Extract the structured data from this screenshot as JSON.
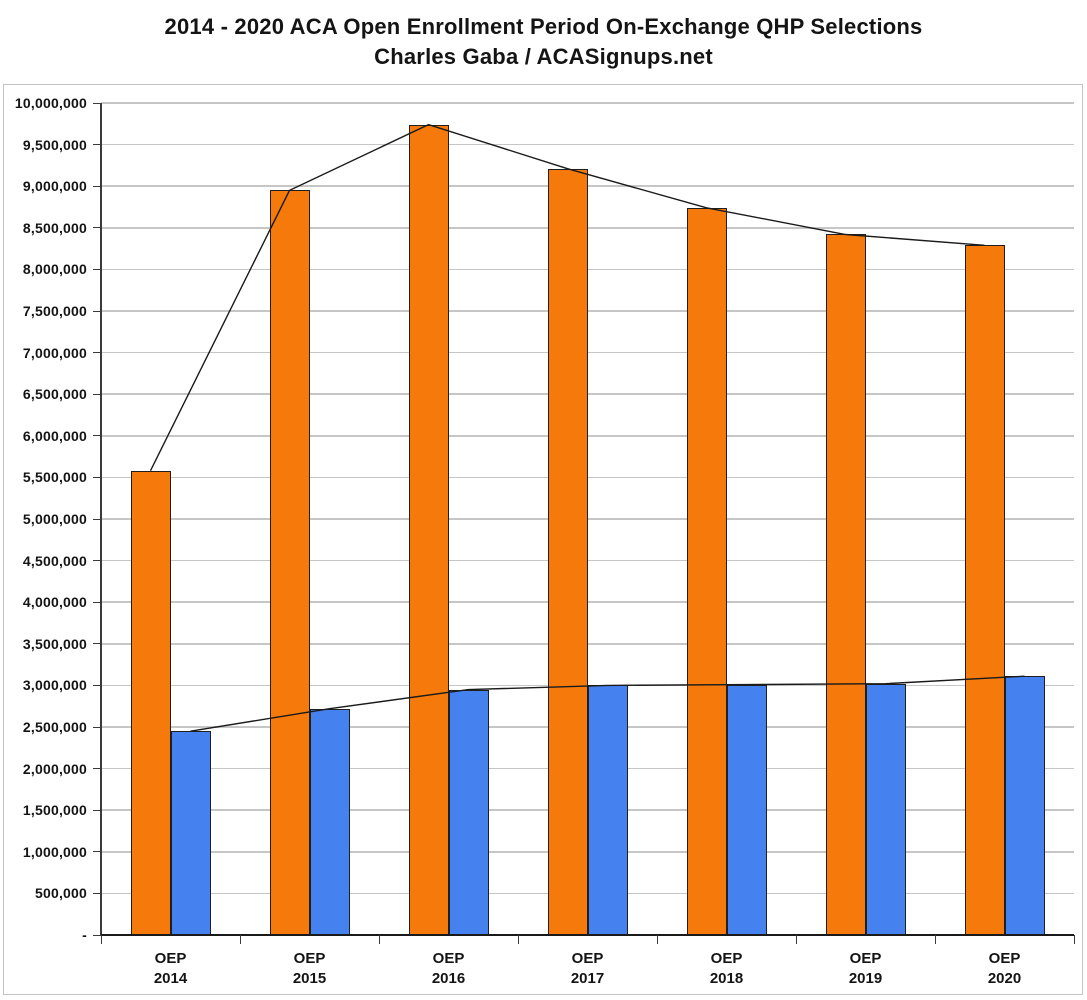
{
  "title": {
    "line1": "2014 - 2020 ACA Open Enrollment Period On-Exchange QHP Selections",
    "line2": "Charles Gaba / ACASignups.net"
  },
  "chart_data": {
    "type": "bar",
    "title": "2014 - 2020 ACA Open Enrollment Period On-Exchange QHP Selections",
    "subtitle": "Charles Gaba / ACASignups.net",
    "categories": [
      {
        "top": "OEP",
        "bottom": "2014"
      },
      {
        "top": "OEP",
        "bottom": "2015"
      },
      {
        "top": "OEP",
        "bottom": "2016"
      },
      {
        "top": "OEP",
        "bottom": "2017"
      },
      {
        "top": "OEP",
        "bottom": "2018"
      },
      {
        "top": "OEP",
        "bottom": "2019"
      },
      {
        "top": "OEP",
        "bottom": "2020"
      }
    ],
    "series": [
      {
        "name": "orange-bars",
        "color": "#F57A0B",
        "values": [
          5580000,
          8950000,
          9740000,
          9210000,
          8740000,
          8420000,
          8290000
        ],
        "line_overlay": true
      },
      {
        "name": "blue-bars",
        "color": "#4681F0",
        "values": [
          2450000,
          2720000,
          2950000,
          3000000,
          3010000,
          3020000,
          3110000
        ],
        "line_overlay": true
      }
    ],
    "ylim": [
      0,
      10000000
    ],
    "ytick_step": 500000,
    "zero_tick_label": "-",
    "grid": true,
    "legend": "none",
    "xlabel": "",
    "ylabel": ""
  },
  "colors": {
    "grid": "#c6c6c6",
    "axis": "#3a3a3a",
    "zero_axis": "#1a1a1a",
    "bar_border": "#1f1f1f",
    "overlay_line": "#1a1a1a",
    "frame_border": "#c4c4c4",
    "text": "#141414"
  }
}
